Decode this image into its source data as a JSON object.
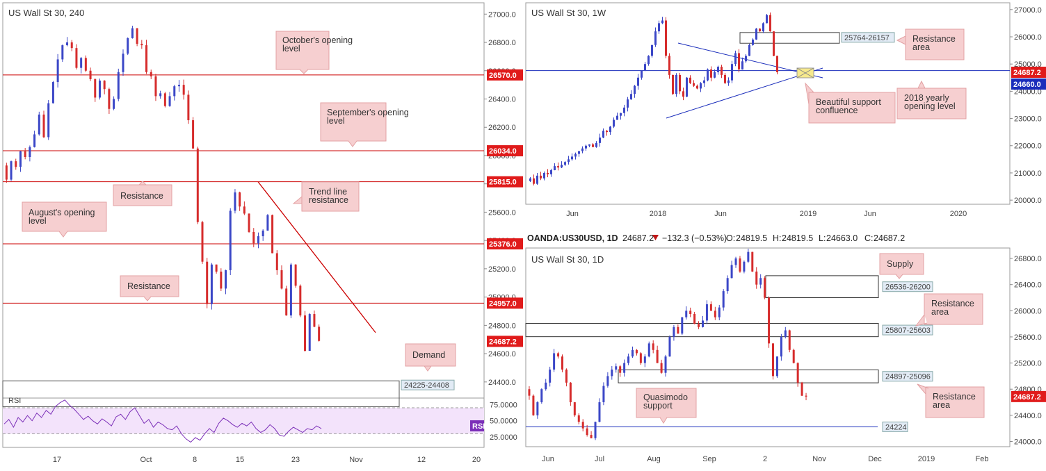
{
  "colors": {
    "up": "#3b47c7",
    "down": "#d62c2c",
    "level": "#cc0000",
    "support": "#1a2dbb",
    "callout_fill": "#f6cfd0",
    "callout_stroke": "#e3a1a3",
    "price_tag": "#e01b1b",
    "blue_tag": "#1a2dbb",
    "rsi_fill": "#f3e3fb",
    "rsi_line": "#7b2fb8",
    "zone_label_fill": "#e2ebf5",
    "confluence": "#f6e98d"
  },
  "chart_data": [
    {
      "id": "h4",
      "type": "candlestick",
      "title": "US Wall St 30, 240",
      "ylim": [
        24350,
        27080
      ],
      "y_ticks": [
        27000,
        26800,
        26600,
        26400,
        26200,
        26000,
        25800,
        25600,
        25400,
        25200,
        25000,
        24800,
        24600,
        24400
      ],
      "x_ticks": [
        "17",
        "Oct",
        "8",
        "15",
        "23",
        "Nov",
        "12",
        "20"
      ],
      "levels": [
        {
          "value": 26570,
          "label": "26570.0"
        },
        {
          "value": 26034,
          "label": "26034.0"
        },
        {
          "value": 25815,
          "label": "25815.0"
        },
        {
          "value": 25376,
          "label": "25376.0"
        },
        {
          "value": 24957,
          "label": "24957.0"
        }
      ],
      "current_price": {
        "value": 24687,
        "label": "24687.2"
      },
      "zones": [
        {
          "label": "24225-24408",
          "low": 24225,
          "high": 24408
        }
      ],
      "trendline": {
        "label": "Trend line resistance",
        "from": [
          25815
        ],
        "to": [
          24700
        ]
      },
      "annotations": [
        "October's opening level",
        "September's opening level",
        "Resistance",
        "Trend line resistance",
        "August's opening level",
        "Resistance",
        "Demand"
      ],
      "path": [
        25930,
        25830,
        25960,
        25920,
        26030,
        25990,
        26060,
        26150,
        26290,
        26130,
        26370,
        26520,
        26680,
        26780,
        26800,
        26760,
        26620,
        26690,
        26600,
        26540,
        26410,
        26530,
        26470,
        26330,
        26400,
        26590,
        26720,
        26830,
        26900,
        26790,
        26780,
        26590,
        26560,
        26420,
        26440,
        26350,
        26420,
        26490,
        26500,
        26430,
        26250,
        26050,
        25530,
        25250,
        24950,
        25230,
        25180,
        25060,
        25190,
        25610,
        25740,
        25640,
        25590,
        25460,
        25380,
        25430,
        25470,
        25580,
        25310,
        25190,
        25060,
        24870,
        25230,
        25080,
        24870,
        24620,
        24880,
        24790,
        24690
      ]
    },
    {
      "id": "rsi",
      "type": "line",
      "title": "RSI",
      "ylim": [
        10,
        85
      ],
      "y_ticks": [
        "75.0000",
        "50.0000",
        "25.0000"
      ],
      "bands": [
        70,
        30
      ],
      "values": [
        45,
        52,
        40,
        55,
        48,
        58,
        50,
        62,
        55,
        66,
        60,
        72,
        78,
        82,
        74,
        68,
        60,
        52,
        57,
        50,
        45,
        53,
        48,
        42,
        56,
        60,
        52,
        64,
        70,
        58,
        46,
        52,
        40,
        48,
        44,
        38,
        36,
        42,
        30,
        22,
        17,
        24,
        20,
        30,
        38,
        32,
        46,
        54,
        50,
        44,
        40,
        46,
        42,
        48,
        38,
        32,
        36,
        44,
        38,
        28,
        26,
        34,
        40,
        36,
        32,
        38,
        36,
        42,
        38
      ],
      "badge": "RSI"
    },
    {
      "id": "weekly",
      "type": "candlestick",
      "title": "US Wall St 30, 1W",
      "ylim": [
        19850,
        27250
      ],
      "y_ticks": [
        27000,
        26000,
        25000,
        24000,
        23000,
        22000,
        21000,
        20000
      ],
      "x_ticks": [
        "Jun",
        "2018",
        "Jun",
        "2019",
        "Jun",
        "2020"
      ],
      "price_tags": [
        {
          "value": 24687,
          "label": "24687.2",
          "color": "red"
        },
        {
          "value": 24660,
          "label": "24660.0",
          "color": "blue"
        }
      ],
      "zones": [
        {
          "label": "25764-26157",
          "low": 25764,
          "high": 26157
        }
      ],
      "annotations": [
        "Resistance area",
        "2018 yearly opening level",
        "Beautiful support confluence"
      ],
      "path": [
        20700,
        20800,
        20600,
        20900,
        20800,
        21000,
        20950,
        21100,
        21250,
        21200,
        21300,
        21400,
        21500,
        21600,
        21700,
        21800,
        21900,
        22000,
        22050,
        21950,
        22100,
        22300,
        22550,
        22500,
        22700,
        22950,
        23100,
        23200,
        23400,
        23700,
        23900,
        24200,
        24500,
        24750,
        25000,
        25300,
        25700,
        26200,
        26500,
        26600,
        25300,
        24600,
        23900,
        24600,
        24000,
        23800,
        24500,
        24300,
        24200,
        24100,
        24300,
        24400,
        24800,
        24500,
        24700,
        24900,
        24600,
        24300,
        24400,
        25000,
        25400,
        24800,
        25100,
        25300,
        25700,
        25900,
        26300,
        26200,
        26500,
        26800,
        26200,
        25300,
        24700
      ]
    },
    {
      "id": "daily",
      "type": "candlestick",
      "title": "US Wall St 30, 1D",
      "ylim": [
        23920,
        26960
      ],
      "y_ticks": [
        26800,
        26400,
        26000,
        25600,
        25200,
        24800,
        24400,
        24000
      ],
      "x_ticks": [
        "Jun",
        "Jul",
        "Aug",
        "Sep",
        "2",
        "Nov",
        "Dec",
        "2019",
        "Feb"
      ],
      "current_price": {
        "value": 24687,
        "label": "24687.2"
      },
      "zones": [
        {
          "label": "26536-26200",
          "low": 26200,
          "high": 26536
        },
        {
          "label": "25807-25603",
          "low": 25603,
          "high": 25807
        },
        {
          "label": "24897-25096",
          "low": 24897,
          "high": 25096
        }
      ],
      "support_line": {
        "value": 24224,
        "label": "24224"
      },
      "annotations": [
        "Supply",
        "Resistance area",
        "Resistance area",
        "Quasimodo support"
      ],
      "path": [
        24800,
        24700,
        24400,
        24600,
        24800,
        24900,
        25100,
        25350,
        25300,
        25100,
        24900,
        24600,
        24400,
        24300,
        24200,
        24100,
        24050,
        24300,
        24600,
        24850,
        25000,
        25100,
        25150,
        25050,
        25200,
        25300,
        25400,
        25350,
        25200,
        25300,
        25500,
        25400,
        25200,
        25050,
        25300,
        25600,
        25750,
        25650,
        25900,
        26000,
        25950,
        25800,
        25750,
        25850,
        26100,
        26000,
        25900,
        26050,
        26300,
        26500,
        26700,
        26800,
        26600,
        26750,
        26900,
        26600,
        26400,
        26500,
        26200,
        25500,
        25000,
        25300,
        25600,
        25700,
        25400,
        25200,
        24900,
        24700,
        24687
      ]
    },
    {
      "id": "info",
      "type": "table",
      "symbol": "OANDA:US30USD, 1D",
      "last": "24687.2",
      "change": "−132.3 (−0.53%)",
      "ohlc": [
        {
          "k": "O:",
          "v": "24819.5"
        },
        {
          "k": "H:",
          "v": "24819.5"
        },
        {
          "k": "L:",
          "v": "24663.0"
        },
        {
          "k": "C:",
          "v": "24687.2"
        }
      ]
    }
  ]
}
